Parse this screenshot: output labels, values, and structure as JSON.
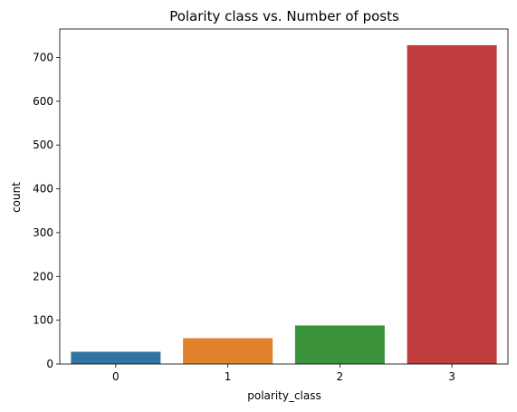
{
  "chart_data": {
    "type": "bar",
    "title": "Polarity class vs. Number of posts",
    "xlabel": "polarity_class",
    "ylabel": "count",
    "categories": [
      "0",
      "1",
      "2",
      "3"
    ],
    "values": [
      28,
      59,
      88,
      728
    ],
    "ylim": [
      0,
      765
    ],
    "yticks": [
      0,
      100,
      200,
      300,
      400,
      500,
      600,
      700
    ],
    "colors": [
      "#3274a1",
      "#e1812c",
      "#3a923a",
      "#c03d3e"
    ],
    "grid": false,
    "legend": "none"
  }
}
